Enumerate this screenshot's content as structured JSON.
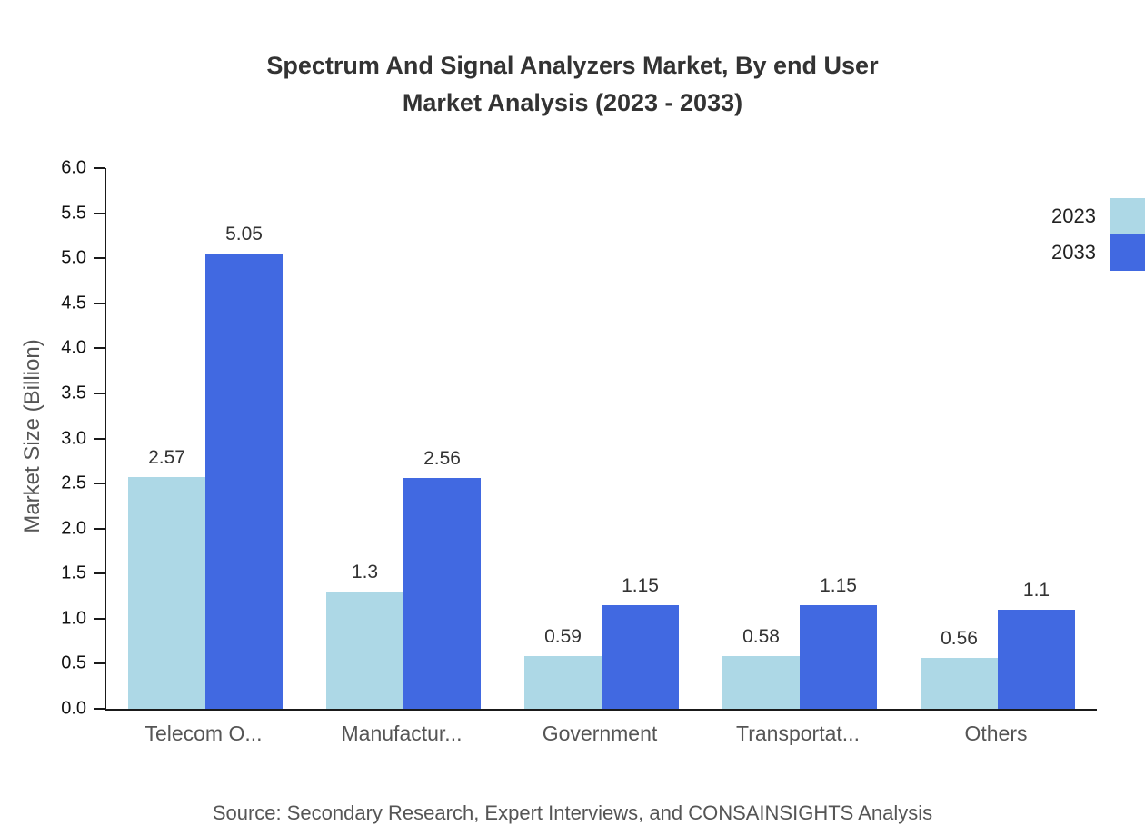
{
  "title": {
    "line1": "Spectrum And Signal Analyzers Market, By end User",
    "line2": "Market Analysis (2023 - 2033)"
  },
  "chart_data": {
    "type": "bar",
    "categories": [
      "Telecom O...",
      "Manufactur...",
      "Government",
      "Transportat...",
      "Others"
    ],
    "series": [
      {
        "name": "2023",
        "color": "#ADD8E6",
        "values": [
          2.57,
          1.3,
          0.59,
          0.58,
          0.56
        ]
      },
      {
        "name": "2033",
        "color": "#4169E1",
        "values": [
          5.05,
          2.56,
          1.15,
          1.15,
          1.1
        ]
      }
    ],
    "value_labels": [
      [
        "2.57",
        "1.3",
        "0.59",
        "0.58",
        "0.56"
      ],
      [
        "5.05",
        "2.56",
        "1.15",
        "1.15",
        "1.1"
      ]
    ],
    "xlabel": "",
    "ylabel": "Market Size (Billion)",
    "ylim": [
      0,
      6
    ],
    "ytick_step": 0.5,
    "yticks": [
      "0.0",
      "0.5",
      "1.0",
      "1.5",
      "2.0",
      "2.5",
      "3.0",
      "3.5",
      "4.0",
      "4.5",
      "5.0",
      "5.5",
      "6.0"
    ],
    "grid": false,
    "legend_position": "top-right"
  },
  "source": "Source: Secondary Research, Expert Interviews, and CONSAINSIGHTS Analysis"
}
